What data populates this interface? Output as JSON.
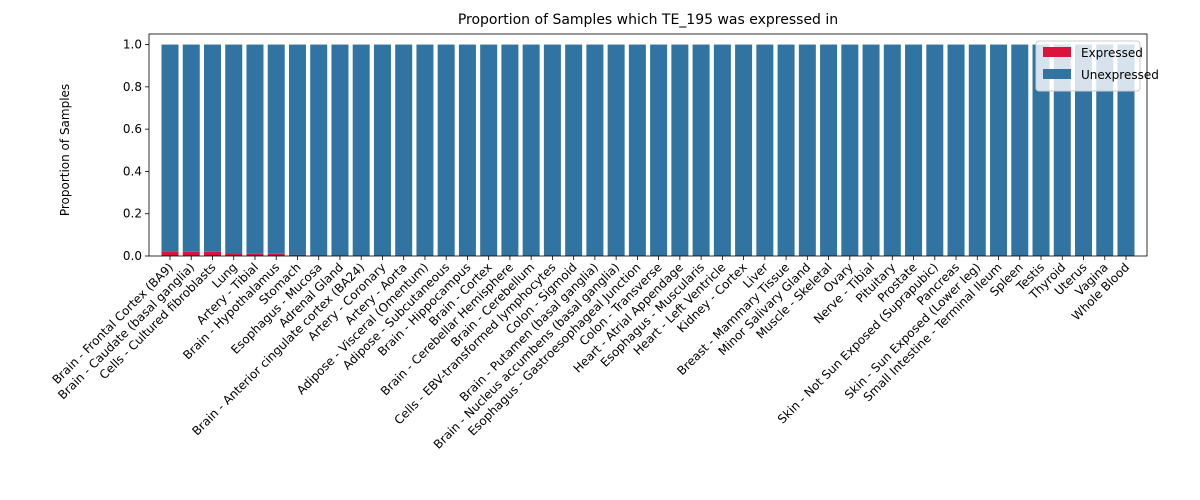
{
  "chart_data": {
    "type": "bar",
    "stacked": true,
    "title": "Proportion of Samples which TE_195 was expressed in",
    "xlabel": "",
    "ylabel": "Proportion of Samples",
    "ylim": [
      0,
      1.05
    ],
    "yticks": [
      0.0,
      0.2,
      0.4,
      0.6,
      0.8,
      1.0
    ],
    "ytick_labels": [
      "0.0",
      "0.2",
      "0.4",
      "0.6",
      "0.8",
      "1.0"
    ],
    "legend_position": "top-right",
    "grid": false,
    "categories": [
      "Brain - Frontal Cortex (BA9)",
      "Brain - Caudate (basal ganglia)",
      "Cells - Cultured fibroblasts",
      "Lung",
      "Artery - Tibial",
      "Brain - Hypothalamus",
      "Stomach",
      "Esophagus - Mucosa",
      "Adrenal Gland",
      "Brain - Anterior cingulate cortex (BA24)",
      "Artery - Coronary",
      "Artery - Aorta",
      "Adipose - Visceral (Omentum)",
      "Adipose - Subcutaneous",
      "Brain - Hippocampus",
      "Brain - Cortex",
      "Brain - Cerebellar Hemisphere",
      "Brain - Cerebellum",
      "Cells - EBV-transformed lymphocytes",
      "Colon - Sigmoid",
      "Brain - Putamen (basal ganglia)",
      "Brain - Nucleus accumbens (basal ganglia)",
      "Esophagus - Gastroesophageal Junction",
      "Colon - Transverse",
      "Heart - Atrial Appendage",
      "Esophagus - Muscularis",
      "Heart - Left Ventricle",
      "Kidney - Cortex",
      "Liver",
      "Breast - Mammary Tissue",
      "Minor Salivary Gland",
      "Muscle - Skeletal",
      "Ovary",
      "Nerve - Tibial",
      "Pituitary",
      "Prostate",
      "Skin - Not Sun Exposed (Suprapubic)",
      "Pancreas",
      "Skin - Sun Exposed (Lower leg)",
      "Small Intestine - Terminal Ileum",
      "Spleen",
      "Testis",
      "Thyroid",
      "Uterus",
      "Vagina",
      "Whole Blood"
    ],
    "series": [
      {
        "name": "Expressed",
        "color": "#dc143c",
        "values": [
          0.022,
          0.02,
          0.02,
          0.012,
          0.011,
          0.01,
          0.005,
          0,
          0,
          0,
          0,
          0,
          0,
          0,
          0,
          0,
          0,
          0,
          0,
          0,
          0,
          0,
          0,
          0,
          0,
          0,
          0,
          0,
          0,
          0,
          0,
          0,
          0,
          0,
          0,
          0,
          0,
          0,
          0,
          0,
          0,
          0,
          0,
          0,
          0,
          0
        ]
      },
      {
        "name": "Unexpressed",
        "color": "#3274a1",
        "values": [
          0.978,
          0.98,
          0.98,
          0.988,
          0.989,
          0.99,
          0.995,
          1,
          1,
          1,
          1,
          1,
          1,
          1,
          1,
          1,
          1,
          1,
          1,
          1,
          1,
          1,
          1,
          1,
          1,
          1,
          1,
          1,
          1,
          1,
          1,
          1,
          1,
          1,
          1,
          1,
          1,
          1,
          1,
          1,
          1,
          1,
          1,
          1,
          1,
          1
        ]
      }
    ]
  }
}
